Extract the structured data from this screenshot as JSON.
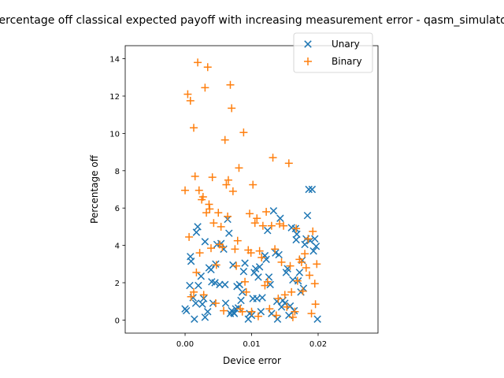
{
  "chart_data": {
    "type": "scatter",
    "title": "Percentage off classical expected payoff with increasing measurement error - qasm_simulator",
    "xlabel": "Device error",
    "ylabel": "Percentage off",
    "xlim": [
      -0.009,
      0.029
    ],
    "ylim": [
      -0.7,
      14.7
    ],
    "xticks": [
      0.0,
      0.01,
      0.02
    ],
    "xtick_labels": [
      "0.00",
      "0.01",
      "0.02"
    ],
    "yticks": [
      0,
      2,
      4,
      6,
      8,
      10,
      12,
      14
    ],
    "ytick_labels": [
      "0",
      "2",
      "4",
      "6",
      "8",
      "10",
      "12",
      "14"
    ],
    "grid": false,
    "legend_position": "top-right",
    "series": [
      {
        "name": "Unary",
        "marker": "x",
        "color": "#1f77b4",
        "points": [
          [
            0.0,
            0.6
          ],
          [
            0.0002,
            0.5
          ],
          [
            0.0007,
            1.85
          ],
          [
            0.0008,
            3.4
          ],
          [
            0.0009,
            3.15
          ],
          [
            0.0012,
            1.2
          ],
          [
            0.0014,
            0.05
          ],
          [
            0.0016,
            0.9
          ],
          [
            0.0017,
            4.7
          ],
          [
            0.0019,
            5.0
          ],
          [
            0.002,
            1.85
          ],
          [
            0.0024,
            2.35
          ],
          [
            0.0026,
            0.85
          ],
          [
            0.0028,
            1.15
          ],
          [
            0.003,
            4.2
          ],
          [
            0.003,
            0.15
          ],
          [
            0.0034,
            0.45
          ],
          [
            0.0036,
            2.8
          ],
          [
            0.0039,
            2.7
          ],
          [
            0.004,
            2.05
          ],
          [
            0.0042,
            0.9
          ],
          [
            0.0045,
            2.0
          ],
          [
            0.0046,
            3.0
          ],
          [
            0.0048,
            4.05
          ],
          [
            0.0052,
            1.9
          ],
          [
            0.0054,
            4.1
          ],
          [
            0.0058,
            3.8
          ],
          [
            0.006,
            1.9
          ],
          [
            0.0061,
            0.9
          ],
          [
            0.0064,
            5.4
          ],
          [
            0.0066,
            4.65
          ],
          [
            0.0068,
            0.35
          ],
          [
            0.007,
            0.5
          ],
          [
            0.0072,
            2.95
          ],
          [
            0.0073,
            0.4
          ],
          [
            0.0074,
            0.35
          ],
          [
            0.0076,
            0.6
          ],
          [
            0.0078,
            1.8
          ],
          [
            0.008,
            0.65
          ],
          [
            0.0082,
            1.9
          ],
          [
            0.0084,
            1.05
          ],
          [
            0.0086,
            1.5
          ],
          [
            0.0088,
            2.6
          ],
          [
            0.009,
            3.05
          ],
          [
            0.0095,
            0.05
          ],
          [
            0.0097,
            0.35
          ],
          [
            0.01,
            0.25
          ],
          [
            0.0102,
            1.15
          ],
          [
            0.0104,
            2.55
          ],
          [
            0.0106,
            2.75
          ],
          [
            0.0108,
            1.15
          ],
          [
            0.011,
            2.3
          ],
          [
            0.0112,
            2.85
          ],
          [
            0.0114,
            0.45
          ],
          [
            0.0116,
            1.2
          ],
          [
            0.012,
            3.45
          ],
          [
            0.0122,
            3.25
          ],
          [
            0.0124,
            4.8
          ],
          [
            0.0126,
            2.3
          ],
          [
            0.0128,
            1.9
          ],
          [
            0.013,
            0.35
          ],
          [
            0.0133,
            5.85
          ],
          [
            0.0136,
            3.6
          ],
          [
            0.0138,
            1.0
          ],
          [
            0.0139,
            0.05
          ],
          [
            0.0141,
            3.5
          ],
          [
            0.0143,
            5.45
          ],
          [
            0.0145,
            0.7
          ],
          [
            0.0147,
            1.05
          ],
          [
            0.015,
            0.9
          ],
          [
            0.0152,
            2.55
          ],
          [
            0.0154,
            2.75
          ],
          [
            0.0156,
            0.25
          ],
          [
            0.0158,
            0.75
          ],
          [
            0.016,
            4.95
          ],
          [
            0.0162,
            2.15
          ],
          [
            0.0164,
            0.5
          ],
          [
            0.0166,
            4.9
          ],
          [
            0.0167,
            4.3
          ],
          [
            0.0168,
            4.6
          ],
          [
            0.017,
            2.1
          ],
          [
            0.0172,
            2.55
          ],
          [
            0.0174,
            1.5
          ],
          [
            0.0176,
            3.2
          ],
          [
            0.0178,
            1.7
          ],
          [
            0.018,
            4.05
          ],
          [
            0.0182,
            4.35
          ],
          [
            0.0184,
            5.6
          ],
          [
            0.0186,
            7.0
          ],
          [
            0.0188,
            4.25
          ],
          [
            0.0191,
            7.0
          ],
          [
            0.0193,
            3.7
          ],
          [
            0.0195,
            4.35
          ],
          [
            0.0197,
            3.95
          ],
          [
            0.0199,
            0.05
          ]
        ]
      },
      {
        "name": "Binary",
        "marker": "+",
        "color": "#ff7f0e",
        "points": [
          [
            0.0,
            6.95
          ],
          [
            0.0004,
            12.1
          ],
          [
            0.0006,
            4.45
          ],
          [
            0.0008,
            11.75
          ],
          [
            0.0009,
            1.25
          ],
          [
            0.0013,
            1.5
          ],
          [
            0.0013,
            10.3
          ],
          [
            0.0015,
            7.7
          ],
          [
            0.0017,
            2.55
          ],
          [
            0.0019,
            13.8
          ],
          [
            0.0021,
            6.95
          ],
          [
            0.0022,
            3.6
          ],
          [
            0.0025,
            6.45
          ],
          [
            0.0027,
            6.6
          ],
          [
            0.0028,
            1.35
          ],
          [
            0.003,
            12.45
          ],
          [
            0.0032,
            5.75
          ],
          [
            0.0034,
            13.55
          ],
          [
            0.0036,
            6.2
          ],
          [
            0.0037,
            5.95
          ],
          [
            0.0039,
            3.85
          ],
          [
            0.0041,
            7.65
          ],
          [
            0.0043,
            5.2
          ],
          [
            0.0046,
            0.9
          ],
          [
            0.0047,
            2.95
          ],
          [
            0.005,
            5.75
          ],
          [
            0.0052,
            4.05
          ],
          [
            0.0054,
            5.0
          ],
          [
            0.0056,
            3.9
          ],
          [
            0.0058,
            0.5
          ],
          [
            0.006,
            9.65
          ],
          [
            0.0062,
            7.25
          ],
          [
            0.0064,
            5.55
          ],
          [
            0.0065,
            7.5
          ],
          [
            0.0068,
            12.6
          ],
          [
            0.007,
            11.35
          ],
          [
            0.0072,
            6.9
          ],
          [
            0.0075,
            3.8
          ],
          [
            0.0077,
            2.9
          ],
          [
            0.0079,
            4.25
          ],
          [
            0.0081,
            8.15
          ],
          [
            0.0083,
            0.6
          ],
          [
            0.0086,
            0.45
          ],
          [
            0.0088,
            10.05
          ],
          [
            0.009,
            2.05
          ],
          [
            0.0092,
            1.5
          ],
          [
            0.0095,
            3.75
          ],
          [
            0.0097,
            5.7
          ],
          [
            0.0099,
            3.6
          ],
          [
            0.01,
            0.45
          ],
          [
            0.0102,
            7.25
          ],
          [
            0.0105,
            5.2
          ],
          [
            0.0108,
            5.45
          ],
          [
            0.011,
            0.2
          ],
          [
            0.0112,
            3.7
          ],
          [
            0.0115,
            3.35
          ],
          [
            0.0117,
            5.05
          ],
          [
            0.012,
            1.85
          ],
          [
            0.0122,
            5.8
          ],
          [
            0.0124,
            2.05
          ],
          [
            0.0127,
            0.6
          ],
          [
            0.013,
            5.05
          ],
          [
            0.0132,
            8.7
          ],
          [
            0.0135,
            3.8
          ],
          [
            0.0137,
            0.25
          ],
          [
            0.014,
            1.15
          ],
          [
            0.0142,
            5.15
          ],
          [
            0.0145,
            3.1
          ],
          [
            0.0148,
            5.05
          ],
          [
            0.015,
            1.35
          ],
          [
            0.0153,
            0.7
          ],
          [
            0.0156,
            8.4
          ],
          [
            0.0158,
            2.9
          ],
          [
            0.016,
            1.5
          ],
          [
            0.0162,
            0.15
          ],
          [
            0.0165,
            0.45
          ],
          [
            0.0167,
            4.9
          ],
          [
            0.0169,
            2.1
          ],
          [
            0.0172,
            3.25
          ],
          [
            0.0175,
            3.1
          ],
          [
            0.0177,
            1.55
          ],
          [
            0.018,
            3.55
          ],
          [
            0.0182,
            2.8
          ],
          [
            0.0185,
            4.35
          ],
          [
            0.0187,
            2.4
          ],
          [
            0.019,
            0.35
          ],
          [
            0.0192,
            4.75
          ],
          [
            0.0195,
            1.95
          ],
          [
            0.0196,
            0.85
          ],
          [
            0.0198,
            3.0
          ]
        ]
      }
    ]
  }
}
